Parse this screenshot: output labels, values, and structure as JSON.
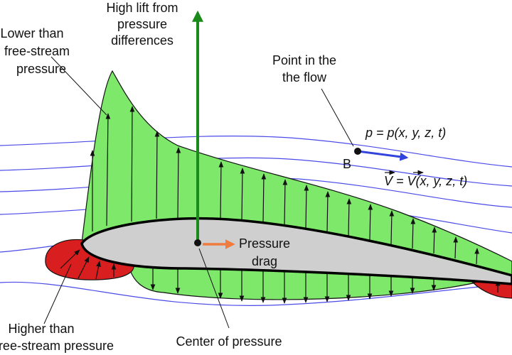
{
  "labels": {
    "lower_pressure": [
      "Lower than",
      "free-stream",
      "pressure"
    ],
    "lift": [
      "High lift from",
      "pressure",
      "differences"
    ],
    "point": [
      "Point in the",
      "the flow"
    ],
    "pressure_eq": "p = p(x, y, z, t)",
    "point_name": "B",
    "velocity_eq": "V = V(x, y, z, t)",
    "drag": [
      "Pressure",
      "drag"
    ],
    "higher_pressure": [
      "Higher than",
      "free-stream pressure"
    ],
    "center": "Center of pressure"
  }
}
